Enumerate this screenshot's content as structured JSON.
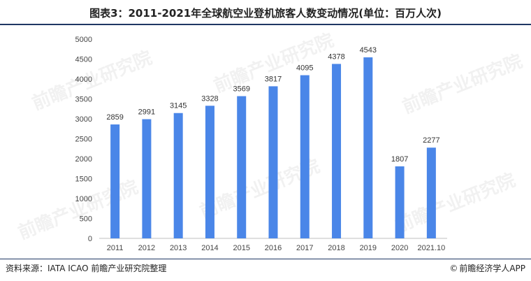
{
  "header": {
    "title": "图表3：2011-2021年全球航空业登机旅客人数变动情况(单位：百万人次)"
  },
  "watermark": {
    "text": "前瞻产业研究院"
  },
  "chart_data": {
    "type": "bar",
    "categories": [
      "2011",
      "2012",
      "2013",
      "2014",
      "2015",
      "2016",
      "2017",
      "2018",
      "2019",
      "2020",
      "2021.10"
    ],
    "values": [
      2859,
      2991,
      3145,
      3328,
      3569,
      3817,
      4095,
      4378,
      4543,
      1807,
      2277
    ],
    "ylim": [
      0,
      5000
    ],
    "yticks": [
      0,
      500,
      1000,
      1500,
      2000,
      2500,
      3000,
      3500,
      4000,
      4500,
      5000
    ],
    "bar_color": "#4a86e8",
    "grid": false,
    "legend": "none"
  },
  "footer": {
    "source": "资料来源：IATA ICAO 前瞻产业研究院整理",
    "brand_symbol": "©",
    "brand": "前瞻经济学人APP"
  }
}
